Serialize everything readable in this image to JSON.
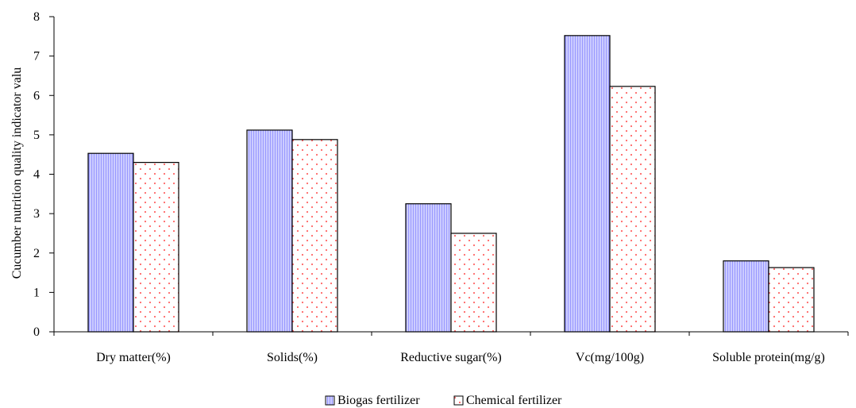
{
  "chart_data": {
    "type": "bar",
    "title": "",
    "xlabel": "",
    "ylabel": "Cucumber nutrition quality indicator valu",
    "categories": [
      "Dry matter(%)",
      "Solids(%)",
      "Reductive sugar(%)",
      "Vc(mg/100g)",
      "Soluble protein(mg/g)"
    ],
    "series": [
      {
        "name": "Biogas fertilizer",
        "values": [
          4.53,
          5.12,
          3.25,
          7.52,
          1.8
        ],
        "pattern": "vertical-stripes",
        "color": "#9999ff"
      },
      {
        "name": "Chemical fertilizer",
        "values": [
          4.3,
          4.88,
          2.5,
          6.23,
          1.63
        ],
        "pattern": "dots",
        "color": "#ff6666"
      }
    ],
    "ylim": [
      0,
      8
    ],
    "yticks": [
      0,
      1,
      2,
      3,
      4,
      5,
      6,
      7,
      8
    ],
    "grid": false,
    "legend_position": "bottom-center"
  }
}
